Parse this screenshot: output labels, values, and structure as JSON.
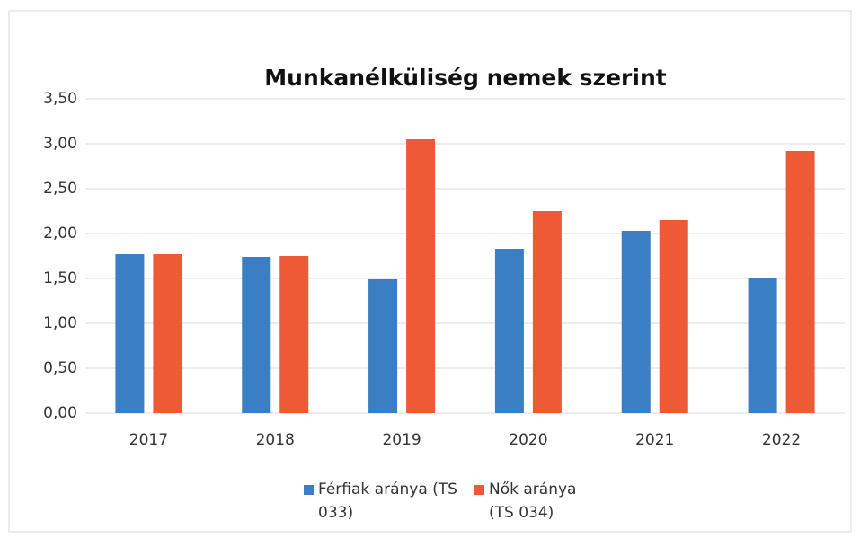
{
  "chart_data": {
    "type": "bar",
    "title": "Munkanélküliség nemek szerint",
    "categories": [
      "2017",
      "2018",
      "2019",
      "2020",
      "2021",
      "2022"
    ],
    "series": [
      {
        "name": "Férfiak aránya (TS 033)",
        "color": "#3a7fc4",
        "values": [
          1.77,
          1.74,
          1.49,
          1.83,
          2.03,
          1.5
        ]
      },
      {
        "name": "Nők aránya (TS 034)",
        "color": "#ee5a35",
        "values": [
          1.77,
          1.75,
          3.05,
          2.25,
          2.15,
          2.92
        ]
      }
    ],
    "ylim": [
      0,
      3.5
    ],
    "yticks": [
      {
        "value": 0,
        "label": "0,00"
      },
      {
        "value": 0.5,
        "label": "0,50"
      },
      {
        "value": 1,
        "label": "1,00"
      },
      {
        "value": 1.5,
        "label": "1,50"
      },
      {
        "value": 2,
        "label": "2,00"
      },
      {
        "value": 2.5,
        "label": "2,50"
      },
      {
        "value": 3,
        "label": "3,00"
      },
      {
        "value": 3.5,
        "label": "3,50"
      }
    ],
    "grid": true,
    "legend": "bottom"
  }
}
